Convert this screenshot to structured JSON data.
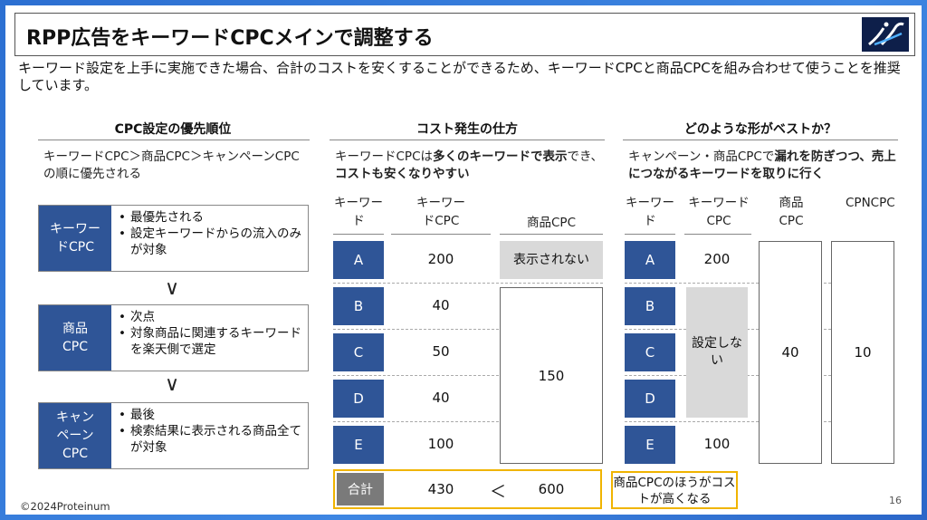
{
  "title": "RPP広告をキーワードCPCメインで調整する",
  "intro": "キーワード設定を上手に実施できた場合、合計のコストを安くすることができるため、キーワードCPCと商品CPCを組み合わせて使うことを推奨しています。",
  "columns": {
    "c1": {
      "heading": "CPC設定の優先順位",
      "desc": "キーワードCPC＞商品CPC＞キャンペーンCPCの順に優先される"
    },
    "c2": {
      "heading": "コスト発生の仕方",
      "desc_pre": "キーワードCPCは",
      "desc_b1": "多くのキーワードで表示",
      "desc_mid": "でき、",
      "desc_b2": "コストも安くなりやすい"
    },
    "c3": {
      "heading": "どのような形がベストか？",
      "desc_pre": "キャンペーン・商品CPCで",
      "desc_b1": "漏れを防ぎつつ、",
      "desc_b2": "売上につながるキーワードを取りに行く"
    }
  },
  "priority": [
    {
      "label": "キーワードCPC",
      "items": [
        "最優先される",
        "設定キーワードからの流入のみが対象"
      ]
    },
    {
      "label": "商品CPC",
      "items": [
        "次点",
        "対象商品に関連するキーワードを楽天側で選定"
      ]
    },
    {
      "label": "キャンペーンCPC",
      "items": [
        "最後",
        "検索結果に表示される商品全てが対象"
      ]
    }
  ],
  "chevron": "∨",
  "headers": {
    "keyword": "キーワード",
    "kwcpc": "キーワードCPC",
    "prodcpc": "商品CPC",
    "prodcpc2": "商品CPC",
    "cpncpc": "CPNCPC"
  },
  "keywords": [
    "A",
    "B",
    "C",
    "D",
    "E"
  ],
  "t1": {
    "kw_values": [
      "200",
      "40",
      "50",
      "40",
      "100"
    ],
    "not_shown": "表示されない",
    "prod_value": "150"
  },
  "t2": {
    "kw_first": "200",
    "not_set": "設定しない",
    "kw_last": "100",
    "prod_value": "40",
    "cpn_value": "10"
  },
  "total": {
    "label": "合計",
    "kw": "430",
    "cmp": "＜",
    "prod": "600"
  },
  "callout": "商品CPCのほうがコストが高くなる",
  "footer": "©2024Proteinum",
  "page": "16"
}
